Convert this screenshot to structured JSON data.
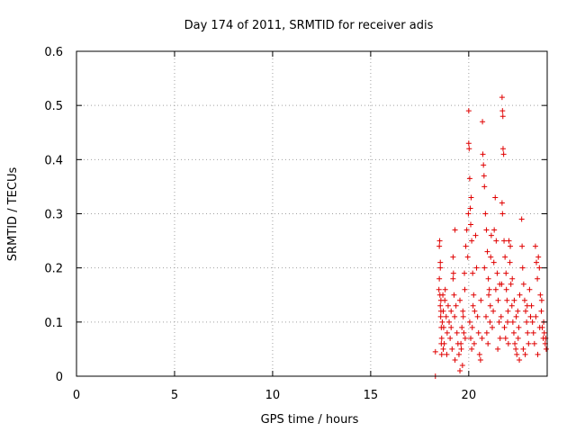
{
  "chart_data": {
    "type": "scatter",
    "title": "Day 174 of 2011, SRMTID for receiver adis",
    "xlabel": "GPS time / hours",
    "ylabel": "SRMTID / TECUs",
    "xlim": [
      0,
      24
    ],
    "ylim": [
      0,
      0.6
    ],
    "xticks": [
      0,
      5,
      10,
      15,
      20
    ],
    "xtick_labels": [
      "0",
      "5",
      "10",
      "15",
      "20"
    ],
    "yticks": [
      0,
      0.1,
      0.2,
      0.3,
      0.4,
      0.5,
      0.6
    ],
    "ytick_labels": [
      "0",
      "0.1",
      "0.2",
      "0.3",
      "0.4",
      "0.5",
      "0.6"
    ],
    "grid": true,
    "marker": "+",
    "marker_color": "#e00000",
    "axis_color": "#000000",
    "grid_color": "#a0a0a0",
    "series": [
      {
        "name": "SRMTID",
        "points": [
          [
            18.3,
            0.0
          ],
          [
            18.3,
            0.045
          ],
          [
            18.5,
            0.24
          ],
          [
            18.52,
            0.25
          ],
          [
            18.55,
            0.2
          ],
          [
            18.55,
            0.13
          ],
          [
            18.58,
            0.12
          ],
          [
            18.6,
            0.09
          ],
          [
            18.62,
            0.07
          ],
          [
            18.5,
            0.18
          ],
          [
            18.53,
            0.15
          ],
          [
            18.57,
            0.11
          ],
          [
            18.6,
            0.06
          ],
          [
            18.62,
            0.04
          ],
          [
            18.65,
            0.1
          ],
          [
            18.48,
            0.16
          ],
          [
            18.55,
            0.21
          ],
          [
            18.58,
            0.14
          ],
          [
            18.7,
            0.12
          ],
          [
            18.72,
            0.09
          ],
          [
            18.75,
            0.06
          ],
          [
            18.78,
            0.14
          ],
          [
            18.8,
            0.16
          ],
          [
            18.7,
            0.05
          ],
          [
            18.85,
            0.11
          ],
          [
            18.9,
            0.08
          ],
          [
            18.95,
            0.13
          ],
          [
            18.68,
            0.15
          ],
          [
            18.88,
            0.04
          ],
          [
            19.0,
            0.1
          ],
          [
            19.05,
            0.07
          ],
          [
            19.1,
            0.12
          ],
          [
            19.15,
            0.05
          ],
          [
            19.2,
            0.22
          ],
          [
            19.25,
            0.15
          ],
          [
            19.3,
            0.27
          ],
          [
            19.2,
            0.18
          ],
          [
            19.1,
            0.09
          ],
          [
            19.35,
            0.13
          ],
          [
            19.4,
            0.08
          ],
          [
            19.45,
            0.06
          ],
          [
            19.3,
            0.03
          ],
          [
            19.22,
            0.19
          ],
          [
            19.28,
            0.11
          ],
          [
            19.5,
            0.04
          ],
          [
            19.55,
            0.01
          ],
          [
            19.6,
            0.06
          ],
          [
            19.65,
            0.09
          ],
          [
            19.7,
            0.12
          ],
          [
            19.75,
            0.08
          ],
          [
            19.8,
            0.16
          ],
          [
            19.85,
            0.24
          ],
          [
            19.9,
            0.27
          ],
          [
            19.95,
            0.22
          ],
          [
            19.55,
            0.14
          ],
          [
            19.62,
            0.05
          ],
          [
            19.68,
            0.02
          ],
          [
            19.72,
            0.11
          ],
          [
            19.78,
            0.19
          ],
          [
            19.82,
            0.07
          ],
          [
            19.98,
            0.3
          ],
          [
            20.0,
            0.43
          ],
          [
            20.02,
            0.42
          ],
          [
            20.0,
            0.49
          ],
          [
            20.05,
            0.365
          ],
          [
            20.08,
            0.31
          ],
          [
            20.1,
            0.28
          ],
          [
            20.12,
            0.33
          ],
          [
            20.15,
            0.25
          ],
          [
            20.2,
            0.19
          ],
          [
            20.25,
            0.15
          ],
          [
            20.3,
            0.12
          ],
          [
            20.05,
            0.1
          ],
          [
            20.1,
            0.07
          ],
          [
            20.15,
            0.05
          ],
          [
            20.18,
            0.09
          ],
          [
            20.22,
            0.13
          ],
          [
            20.28,
            0.06
          ],
          [
            20.35,
            0.26
          ],
          [
            20.4,
            0.2
          ],
          [
            20.45,
            0.11
          ],
          [
            20.5,
            0.08
          ],
          [
            20.55,
            0.04
          ],
          [
            20.6,
            0.03
          ],
          [
            20.62,
            0.14
          ],
          [
            20.7,
            0.47
          ],
          [
            20.75,
            0.39
          ],
          [
            20.78,
            0.37
          ],
          [
            20.8,
            0.35
          ],
          [
            20.72,
            0.41
          ],
          [
            20.85,
            0.3
          ],
          [
            20.9,
            0.27
          ],
          [
            20.95,
            0.23
          ],
          [
            21.0,
            0.18
          ],
          [
            21.05,
            0.16
          ],
          [
            21.1,
            0.13
          ],
          [
            20.8,
            0.2
          ],
          [
            20.88,
            0.11
          ],
          [
            20.92,
            0.08
          ],
          [
            20.98,
            0.06
          ],
          [
            21.02,
            0.15
          ],
          [
            21.08,
            0.1
          ],
          [
            21.12,
            0.22
          ],
          [
            21.15,
            0.26
          ],
          [
            20.68,
            0.07
          ],
          [
            21.2,
            0.09
          ],
          [
            21.25,
            0.12
          ],
          [
            21.3,
            0.27
          ],
          [
            21.35,
            0.33
          ],
          [
            21.4,
            0.25
          ],
          [
            21.45,
            0.19
          ],
          [
            21.5,
            0.14
          ],
          [
            21.55,
            0.1
          ],
          [
            21.6,
            0.07
          ],
          [
            21.65,
            0.11
          ],
          [
            21.28,
            0.21
          ],
          [
            21.38,
            0.16
          ],
          [
            21.48,
            0.05
          ],
          [
            21.58,
            0.17
          ],
          [
            21.7,
            0.515
          ],
          [
            21.72,
            0.49
          ],
          [
            21.74,
            0.48
          ],
          [
            21.75,
            0.42
          ],
          [
            21.78,
            0.41
          ],
          [
            21.7,
            0.32
          ],
          [
            21.72,
            0.3
          ],
          [
            21.8,
            0.25
          ],
          [
            21.85,
            0.22
          ],
          [
            21.9,
            0.19
          ],
          [
            21.95,
            0.14
          ],
          [
            22.0,
            0.12
          ],
          [
            21.82,
            0.09
          ],
          [
            21.88,
            0.07
          ],
          [
            21.92,
            0.16
          ],
          [
            21.98,
            0.1
          ],
          [
            22.02,
            0.06
          ],
          [
            21.68,
            0.17
          ],
          [
            22.05,
            0.25
          ],
          [
            22.1,
            0.21
          ],
          [
            22.15,
            0.17
          ],
          [
            22.2,
            0.13
          ],
          [
            22.25,
            0.1
          ],
          [
            22.3,
            0.08
          ],
          [
            22.35,
            0.06
          ],
          [
            22.4,
            0.05
          ],
          [
            22.45,
            0.04
          ],
          [
            22.5,
            0.12
          ],
          [
            22.55,
            0.09
          ],
          [
            22.6,
            0.15
          ],
          [
            22.12,
            0.24
          ],
          [
            22.22,
            0.18
          ],
          [
            22.32,
            0.14
          ],
          [
            22.42,
            0.11
          ],
          [
            22.52,
            0.07
          ],
          [
            22.58,
            0.03
          ],
          [
            22.7,
            0.29
          ],
          [
            22.72,
            0.24
          ],
          [
            22.75,
            0.2
          ],
          [
            22.8,
            0.17
          ],
          [
            22.85,
            0.14
          ],
          [
            22.9,
            0.12
          ],
          [
            22.95,
            0.1
          ],
          [
            23.0,
            0.08
          ],
          [
            23.05,
            0.06
          ],
          [
            23.1,
            0.16
          ],
          [
            23.15,
            0.11
          ],
          [
            22.78,
            0.05
          ],
          [
            22.88,
            0.04
          ],
          [
            22.98,
            0.13
          ],
          [
            23.2,
            0.13
          ],
          [
            23.25,
            0.1
          ],
          [
            23.3,
            0.08
          ],
          [
            23.35,
            0.06
          ],
          [
            23.4,
            0.24
          ],
          [
            23.45,
            0.21
          ],
          [
            23.5,
            0.18
          ],
          [
            23.55,
            0.22
          ],
          [
            23.6,
            0.2
          ],
          [
            23.65,
            0.15
          ],
          [
            23.7,
            0.12
          ],
          [
            23.75,
            0.09
          ],
          [
            23.8,
            0.07
          ],
          [
            23.85,
            0.08
          ],
          [
            23.9,
            0.06
          ],
          [
            23.95,
            0.05
          ],
          [
            23.42,
            0.11
          ],
          [
            23.52,
            0.04
          ],
          [
            23.62,
            0.09
          ],
          [
            23.72,
            0.14
          ],
          [
            23.82,
            0.1
          ],
          [
            23.92,
            0.07
          ]
        ]
      }
    ]
  }
}
